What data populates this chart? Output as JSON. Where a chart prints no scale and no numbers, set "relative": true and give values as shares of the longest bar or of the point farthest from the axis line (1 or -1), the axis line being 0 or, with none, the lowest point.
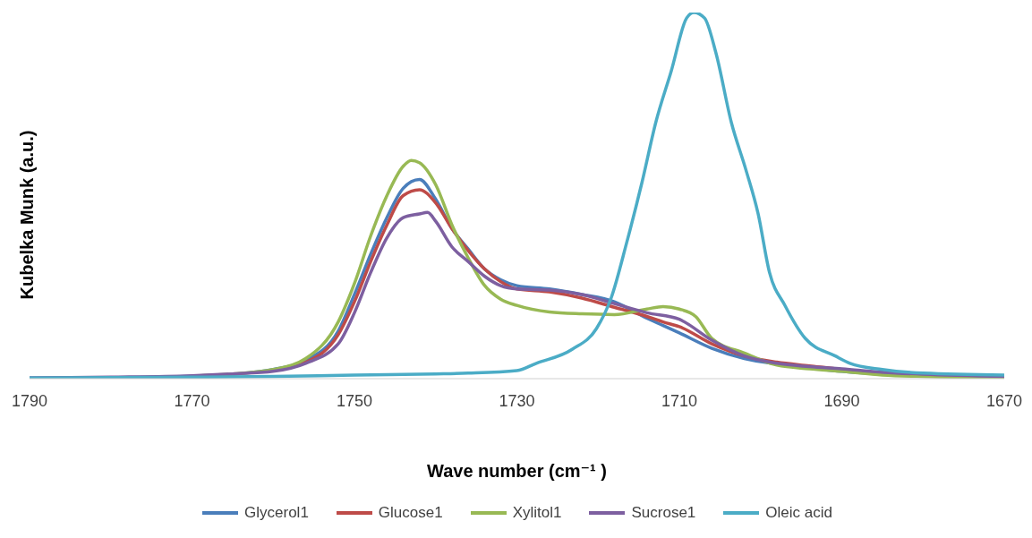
{
  "chart_data": {
    "type": "line",
    "relative": true,
    "xlabel": "Wave number (cm⁻¹ )",
    "ylabel": "Kubelka Munk (a.u.)",
    "xlim": [
      1790,
      1670
    ],
    "xticks": [
      1790,
      1770,
      1750,
      1730,
      1710,
      1690,
      1670
    ],
    "tick_labels": "x",
    "grid": false,
    "legend": "bottom",
    "marker": "none",
    "line_style": "solid",
    "series": [
      {
        "name": "Glycerol1",
        "color": "#4a7ebb",
        "x": [
          1790,
          1780,
          1770,
          1765,
          1760,
          1756,
          1752,
          1750,
          1748,
          1746,
          1744,
          1742,
          1740,
          1738,
          1736,
          1734,
          1732,
          1730,
          1726,
          1722,
          1718,
          1714,
          1712,
          1710,
          1706,
          1702,
          1698,
          1694,
          1690,
          1685,
          1680,
          1670
        ],
        "values": [
          0.002,
          0.003,
          0.007,
          0.012,
          0.025,
          0.05,
          0.13,
          0.23,
          0.34,
          0.44,
          0.52,
          0.544,
          0.49,
          0.41,
          0.354,
          0.3,
          0.27,
          0.254,
          0.245,
          0.23,
          0.21,
          0.165,
          0.145,
          0.125,
          0.083,
          0.055,
          0.04,
          0.03,
          0.02,
          0.012,
          0.008,
          0.004
        ]
      },
      {
        "name": "Glucose1",
        "color": "#be4b48",
        "x": [
          1760,
          1756,
          1752,
          1750,
          1748,
          1746,
          1744,
          1742,
          1740,
          1738,
          1736,
          1734,
          1732,
          1730,
          1726,
          1722,
          1718,
          1714,
          1712,
          1710,
          1706,
          1702,
          1698,
          1694,
          1690,
          1685
        ],
        "values": [
          0.024,
          0.045,
          0.12,
          0.21,
          0.32,
          0.42,
          0.5,
          0.516,
          0.48,
          0.41,
          0.35,
          0.3,
          0.265,
          0.245,
          0.237,
          0.22,
          0.195,
          0.17,
          0.155,
          0.142,
          0.095,
          0.062,
          0.045,
          0.035,
          0.025,
          0.015
        ]
      },
      {
        "name": "Xylitol1",
        "color": "#98b954",
        "x": [
          1770,
          1765,
          1760,
          1756,
          1752,
          1750,
          1748,
          1746,
          1744,
          1743,
          1742,
          1740,
          1738,
          1736,
          1734,
          1732,
          1730,
          1726,
          1722,
          1718,
          1714,
          1712,
          1710,
          1708,
          1706,
          1702,
          1698,
          1694,
          1690,
          1685,
          1680,
          1670
        ],
        "values": [
          0.007,
          0.013,
          0.025,
          0.055,
          0.155,
          0.26,
          0.39,
          0.5,
          0.58,
          0.596,
          0.59,
          0.53,
          0.42,
          0.33,
          0.255,
          0.217,
          0.2,
          0.182,
          0.177,
          0.175,
          0.19,
          0.197,
          0.19,
          0.17,
          0.11,
          0.07,
          0.037,
          0.027,
          0.02,
          0.01,
          0.006,
          0.003
        ]
      },
      {
        "name": "Sucrose1",
        "color": "#7d5fa0",
        "x": [
          1790,
          1780,
          1770,
          1765,
          1760,
          1756,
          1752,
          1750,
          1748,
          1746,
          1744,
          1742,
          1741,
          1740,
          1738,
          1736,
          1734,
          1732,
          1730,
          1726,
          1722,
          1718,
          1714,
          1710,
          1706,
          1702,
          1698,
          1694,
          1690,
          1685,
          1680,
          1670
        ],
        "values": [
          0.002,
          0.004,
          0.008,
          0.013,
          0.02,
          0.042,
          0.095,
          0.18,
          0.29,
          0.385,
          0.44,
          0.45,
          0.454,
          0.43,
          0.36,
          0.32,
          0.28,
          0.254,
          0.245,
          0.242,
          0.23,
          0.205,
          0.18,
          0.162,
          0.105,
          0.062,
          0.042,
          0.033,
          0.027,
          0.018,
          0.012,
          0.006
        ]
      },
      {
        "name": "Oleic acid",
        "color": "#4bacc6",
        "x": [
          1790,
          1770,
          1760,
          1750,
          1740,
          1736,
          1730,
          1727.6,
          1723.2,
          1720.2,
          1718.4,
          1716.5,
          1714.6,
          1712.9,
          1711,
          1709.1,
          1708.2,
          1706.9,
          1705.5,
          1703.6,
          1701.8,
          1700.3,
          1698.9,
          1697,
          1694.5,
          1690.8,
          1689,
          1685,
          1680,
          1670
        ],
        "values": [
          0.002,
          0.004,
          0.006,
          0.01,
          0.013,
          0.015,
          0.022,
          0.042,
          0.08,
          0.137,
          0.22,
          0.37,
          0.536,
          0.7,
          0.84,
          0.985,
          1,
          0.985,
          0.89,
          0.7,
          0.57,
          0.45,
          0.29,
          0.2,
          0.11,
          0.062,
          0.042,
          0.025,
          0.015,
          0.01
        ]
      }
    ]
  }
}
